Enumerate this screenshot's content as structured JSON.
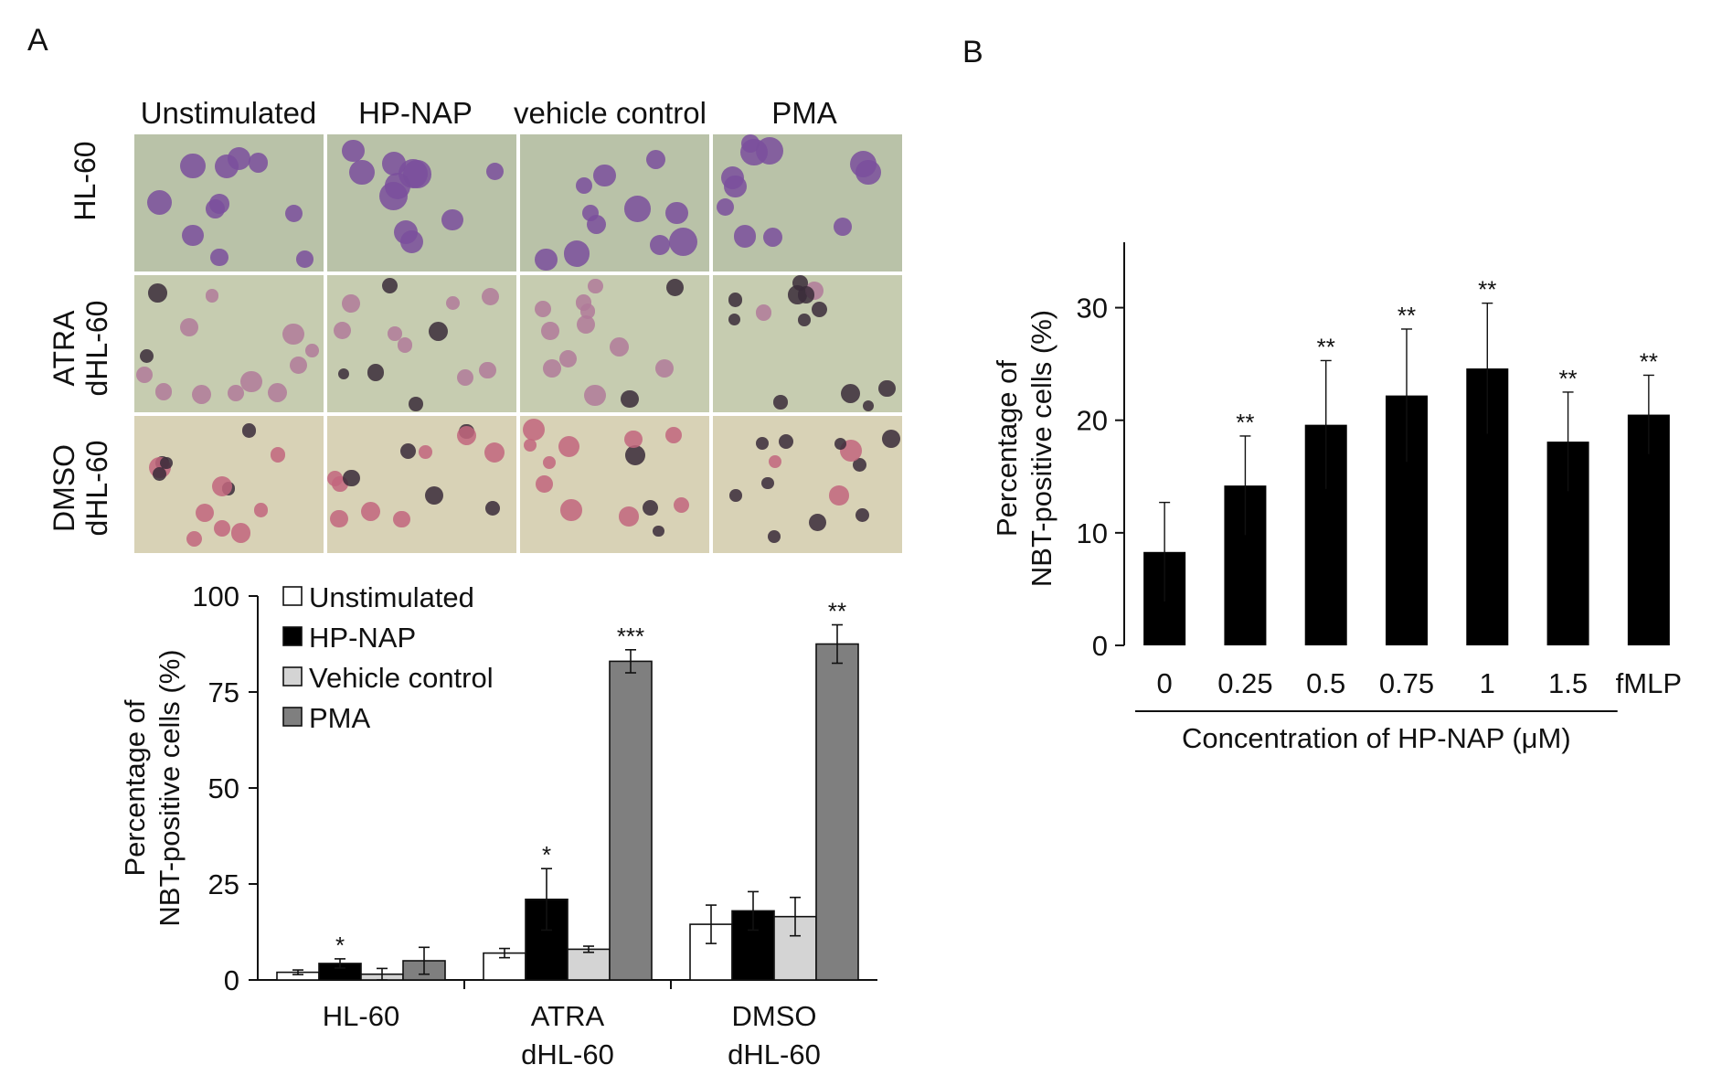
{
  "panels": {
    "a": "A",
    "b": "B"
  },
  "micrographs": {
    "columns": [
      "Unstimulated",
      "HP-NAP",
      "vehicle control",
      "PMA"
    ],
    "rows": [
      {
        "line1": "HL-60",
        "line2": ""
      },
      {
        "line1": "ATRA",
        "line2": "dHL-60"
      },
      {
        "line1": "DMSO",
        "line2": "dHL-60"
      }
    ],
    "colors": {
      "bg_hl60": "#b9c2a8",
      "bg_atra": "#c6ccb0",
      "bg_dmso": "#d8d2b6",
      "violet": "#7a4f9c",
      "pink": "#c2667e",
      "dark": "#3a2c3a"
    }
  },
  "chart_data": [
    {
      "type": "bar",
      "title": "",
      "xlabel": "",
      "ylabel_lines": [
        "Percentage of",
        "NBT-positive cells (%)"
      ],
      "ylim": [
        0,
        100
      ],
      "yticks": [
        0,
        25,
        50,
        75,
        100
      ],
      "categories": [
        {
          "line1": "HL-60",
          "line2": ""
        },
        {
          "line1": "ATRA",
          "line2": "dHL-60"
        },
        {
          "line1": "DMSO",
          "line2": "dHL-60"
        }
      ],
      "series": [
        {
          "name": "Unstimulated",
          "color": "#ffffff",
          "values": [
            2,
            7,
            14.5
          ],
          "errors": [
            0.6,
            1.2,
            5
          ],
          "sig": [
            "",
            "",
            ""
          ]
        },
        {
          "name": "HP-NAP",
          "color": "#000000",
          "values": [
            4.3,
            21,
            18
          ],
          "errors": [
            1.2,
            8,
            5
          ],
          "sig": [
            "*",
            "*",
            ""
          ]
        },
        {
          "name": "Vehicle control",
          "color": "#d4d4d4",
          "values": [
            1.5,
            8,
            16.5
          ],
          "errors": [
            1.5,
            0.8,
            5
          ],
          "sig": [
            "",
            "",
            ""
          ]
        },
        {
          "name": "PMA",
          "color": "#7f7f7f",
          "values": [
            5,
            83,
            87.5
          ],
          "errors": [
            3.5,
            3,
            5
          ],
          "sig": [
            "",
            "***",
            "**"
          ]
        }
      ],
      "legend_position": "top-left"
    },
    {
      "type": "bar",
      "title": "",
      "xlabel": "Concentration of HP-NAP (μM)",
      "ylabel_lines": [
        "Percentage of",
        "NBT-positive cells (%)"
      ],
      "ylim": [
        0,
        35
      ],
      "yticks": [
        0,
        10,
        20,
        30
      ],
      "categories": [
        "0",
        "0.25",
        "0.5",
        "0.75",
        "1",
        "1.5",
        "fMLP"
      ],
      "values": [
        8.3,
        14.2,
        19.6,
        22.2,
        24.6,
        18.1,
        20.5
      ],
      "errors": [
        4.4,
        4.4,
        5.7,
        5.9,
        5.8,
        4.4,
        3.5
      ],
      "sig": [
        "",
        "**",
        "**",
        "**",
        "**",
        "**",
        "**"
      ],
      "bar_color": "#000000"
    }
  ]
}
